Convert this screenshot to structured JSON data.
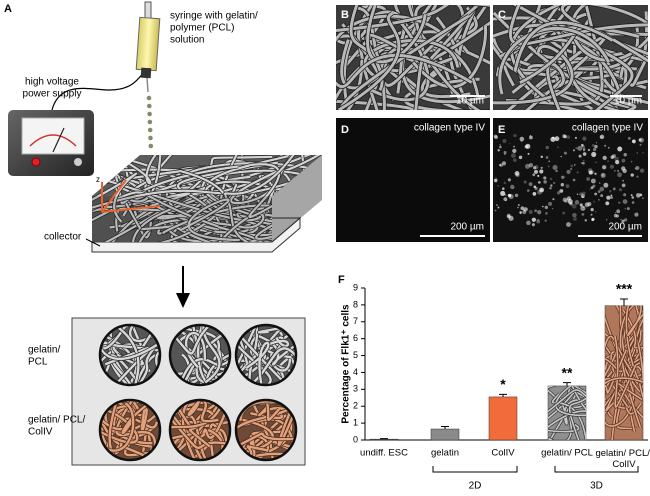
{
  "figure": {
    "labels": [
      "A",
      "B",
      "C",
      "D",
      "E",
      "F"
    ],
    "syringe_label": [
      "syringe with gelatin/",
      "polymer (PCL)",
      "solution"
    ],
    "power_label": [
      "high voltage",
      "power supply"
    ],
    "collector_label": "collector",
    "axis_letters": [
      "z",
      "y",
      "x"
    ],
    "row_labels": [
      [
        "gelatin/",
        "PCL"
      ],
      [
        "gelatin/ PCL/",
        "ColIV"
      ]
    ],
    "stain_labels": [
      "collagen type IV",
      "collagen type IV"
    ],
    "scale_labels": [
      "10 µm",
      "10 µm",
      "200 µm",
      "200 µm"
    ]
  },
  "chart_data": {
    "type": "bar",
    "ylabel": "Percentage of Flk1⁺ cells",
    "categories": [
      "undiff. ESC",
      "gelatin",
      "ColIV",
      "gelatin/ PCL",
      "gelatin/ PCL/ ColIV"
    ],
    "values": [
      0.05,
      0.65,
      2.55,
      3.2,
      7.95
    ],
    "errors": [
      0.03,
      0.15,
      0.15,
      0.2,
      0.4
    ],
    "colors": [
      "#555555",
      "#8a8a8a",
      "#f26b3a",
      "#8e8e8e",
      "#b0775a"
    ],
    "significance": [
      null,
      null,
      "*",
      "**",
      "***"
    ],
    "groups": [
      "2D",
      "3D"
    ],
    "ylim": [
      0,
      9
    ],
    "yticks": [
      0,
      1,
      2,
      3,
      4,
      5,
      6,
      7,
      8,
      9
    ]
  }
}
